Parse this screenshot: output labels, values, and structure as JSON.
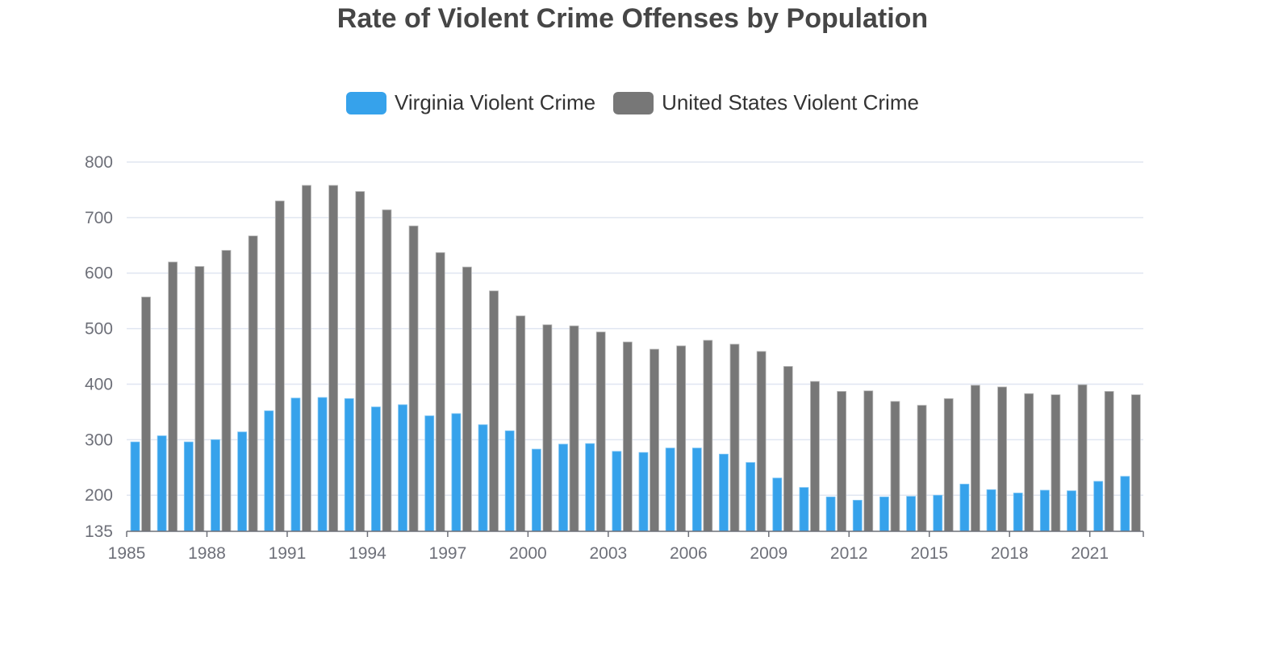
{
  "chart_data": {
    "type": "bar",
    "title": "Rate of Violent Crime Offenses by Population",
    "xlabel": "",
    "ylabel": "",
    "ylim": [
      135,
      800
    ],
    "yticks": [
      135,
      200,
      300,
      400,
      500,
      600,
      700,
      800
    ],
    "grid": true,
    "legend_position": "top-center",
    "categories": [
      "1985",
      "1986",
      "1987",
      "1988",
      "1989",
      "1990",
      "1991",
      "1992",
      "1993",
      "1994",
      "1995",
      "1996",
      "1997",
      "1998",
      "1999",
      "2000",
      "2001",
      "2002",
      "2003",
      "2004",
      "2005",
      "2006",
      "2007",
      "2008",
      "2009",
      "2010",
      "2011",
      "2012",
      "2013",
      "2014",
      "2015",
      "2016",
      "2017",
      "2018",
      "2019",
      "2020",
      "2021",
      "2022"
    ],
    "xtick_labels": [
      "1985",
      "1988",
      "1991",
      "1994",
      "1997",
      "2000",
      "2003",
      "2006",
      "2009",
      "2012",
      "2015",
      "2018",
      "2021"
    ],
    "series": [
      {
        "name": "Virginia Violent Crime",
        "color": "#36a2eb",
        "values": [
          296,
          307,
          296,
          300,
          314,
          352,
          375,
          376,
          374,
          359,
          363,
          343,
          347,
          327,
          316,
          283,
          292,
          293,
          279,
          277,
          285,
          285,
          274,
          259,
          231,
          214,
          197,
          191,
          197,
          198,
          200,
          220,
          210,
          204,
          209,
          208,
          225,
          234
        ]
      },
      {
        "name": "United States Violent Crime",
        "color": "#777777",
        "values": [
          557,
          620,
          612,
          641,
          667,
          730,
          758,
          758,
          747,
          714,
          685,
          637,
          611,
          568,
          523,
          507,
          505,
          494,
          476,
          463,
          469,
          479,
          472,
          459,
          432,
          405,
          387,
          388,
          369,
          362,
          374,
          398,
          395,
          383,
          381,
          399,
          387,
          381
        ]
      }
    ]
  },
  "colors": {
    "title": "#464646",
    "axis": "#6e7079",
    "grid": "#e0e6f1"
  }
}
